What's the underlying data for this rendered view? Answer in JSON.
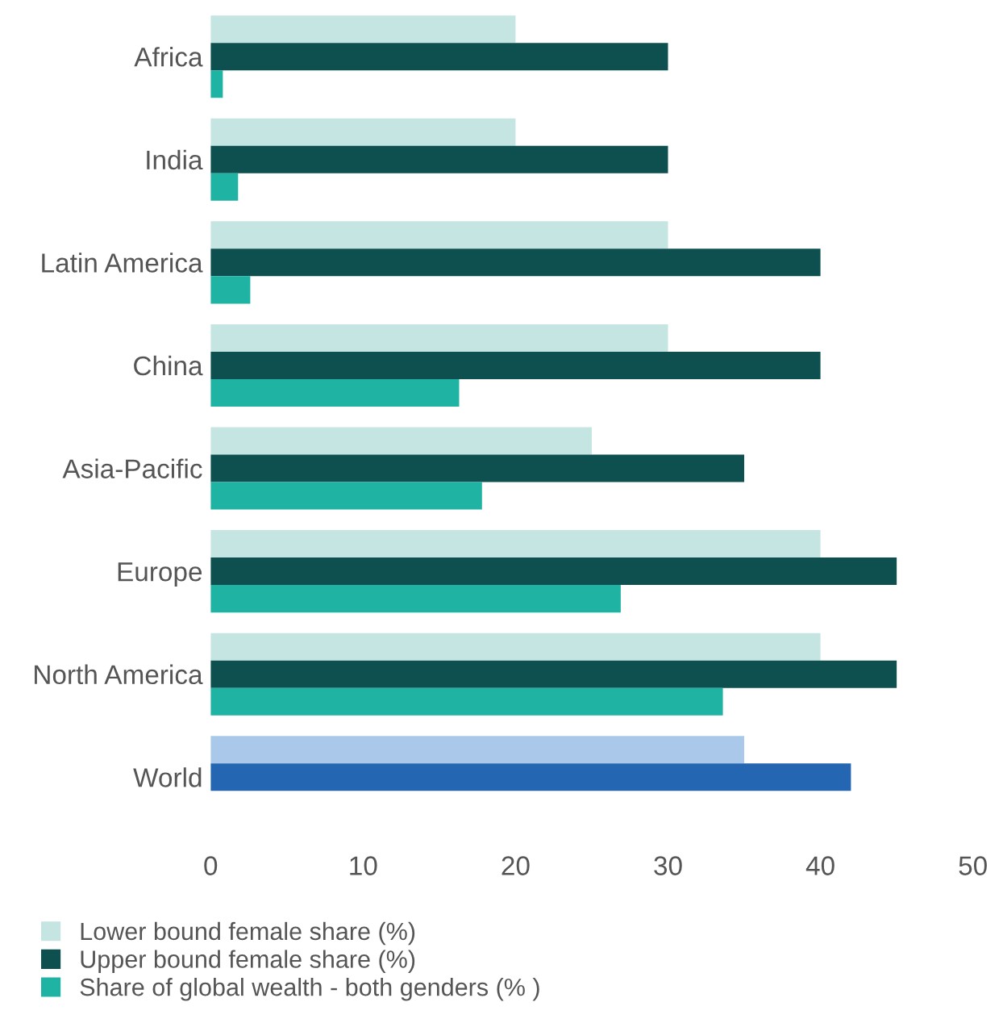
{
  "chart_data": {
    "type": "bar",
    "orientation": "horizontal",
    "categories": [
      "Africa",
      "India",
      "Latin America",
      "China",
      "Asia-Pacific",
      "Europe",
      "North America",
      "World"
    ],
    "series": [
      {
        "name": "Lower bound female share (%)",
        "color": "#c4e5e1",
        "colors": [
          "#c4e5e1",
          "#c4e5e1",
          "#c4e5e1",
          "#c4e5e1",
          "#c4e5e1",
          "#c4e5e1",
          "#c4e5e1",
          "#aac8ea"
        ],
        "values": [
          20,
          20,
          30,
          30,
          25,
          40,
          40,
          35
        ]
      },
      {
        "name": "Upper bound female share (%)",
        "color": "#0e5050",
        "colors": [
          "#0e5050",
          "#0e5050",
          "#0e5050",
          "#0e5050",
          "#0e5050",
          "#0e5050",
          "#0e5050",
          "#2466b2"
        ],
        "values": [
          30,
          30,
          40,
          40,
          35,
          45,
          45,
          42
        ]
      },
      {
        "name": "Share of global wealth - both genders (% )",
        "color": "#1fb3a4",
        "values": [
          0.8,
          1.8,
          2.6,
          16.3,
          17.8,
          26.9,
          33.6,
          null
        ]
      }
    ],
    "xlim": [
      0,
      50
    ],
    "xticks": [
      0,
      10,
      20,
      30,
      40,
      50
    ],
    "legend": "bottom left"
  }
}
